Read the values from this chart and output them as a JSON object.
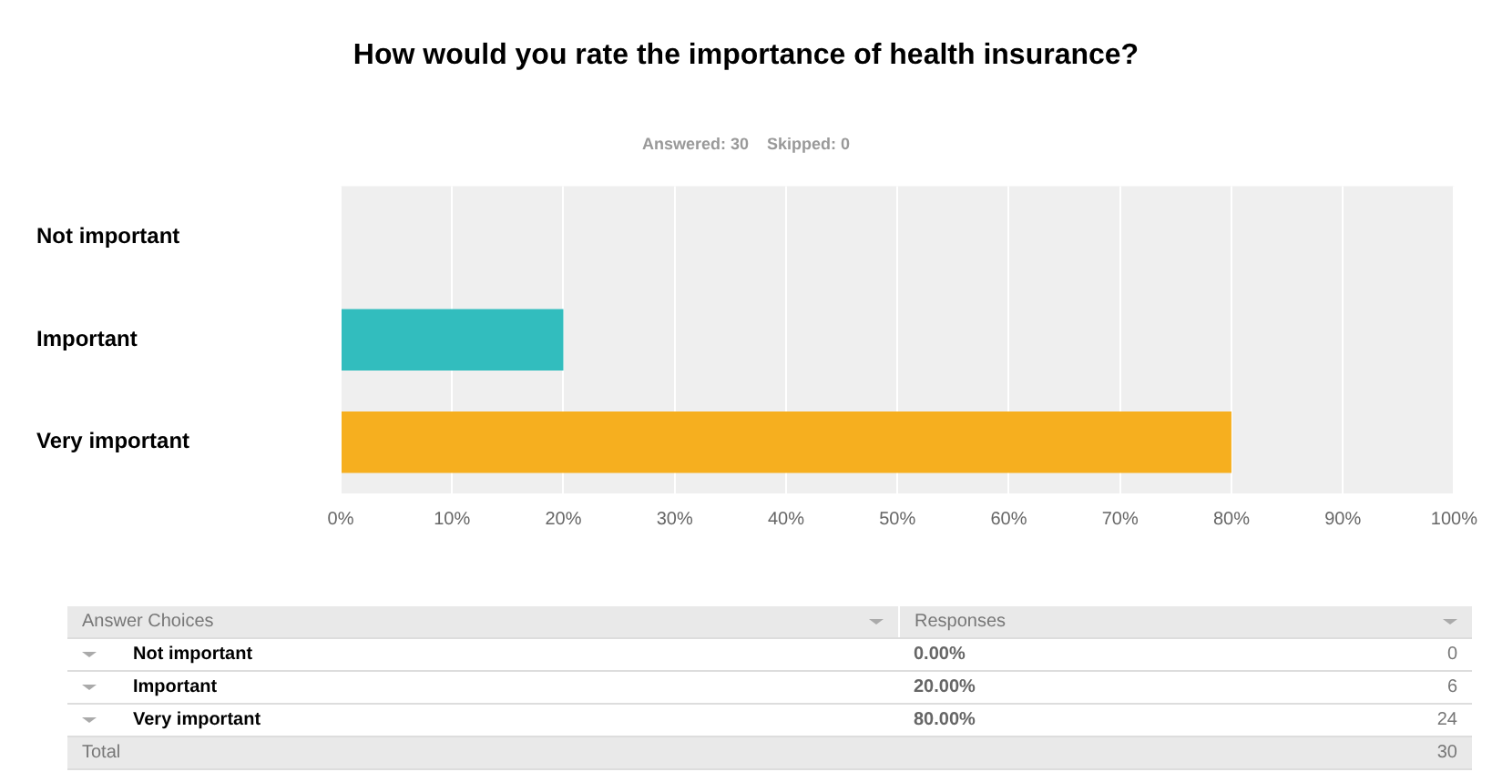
{
  "chart_data": {
    "type": "bar",
    "orientation": "horizontal",
    "title": "How would you rate the importance of health insurance?",
    "subtitle": "Answered: 30    Skipped: 0",
    "categories": [
      "Not important",
      "Important",
      "Very important"
    ],
    "values": [
      0,
      20,
      80
    ],
    "colors": [
      "#8fc33f",
      "#32bdbe",
      "#f6af1f"
    ],
    "xlim": [
      0,
      100
    ],
    "xticks": [
      {
        "value": 0,
        "label": "0%"
      },
      {
        "value": 10,
        "label": "10%"
      },
      {
        "value": 20,
        "label": "20%"
      },
      {
        "value": 30,
        "label": "30%"
      },
      {
        "value": 40,
        "label": "40%"
      },
      {
        "value": 50,
        "label": "50%"
      },
      {
        "value": 60,
        "label": "60%"
      },
      {
        "value": 70,
        "label": "70%"
      },
      {
        "value": 80,
        "label": "80%"
      },
      {
        "value": 90,
        "label": "90%"
      },
      {
        "value": 100,
        "label": "100%"
      }
    ],
    "grid": "x",
    "annotations": [
      "Answer Choices",
      "Responses",
      "0.00%",
      "0",
      "20.00%",
      "6",
      "80.00%",
      "24",
      "Total",
      "30"
    ]
  }
}
